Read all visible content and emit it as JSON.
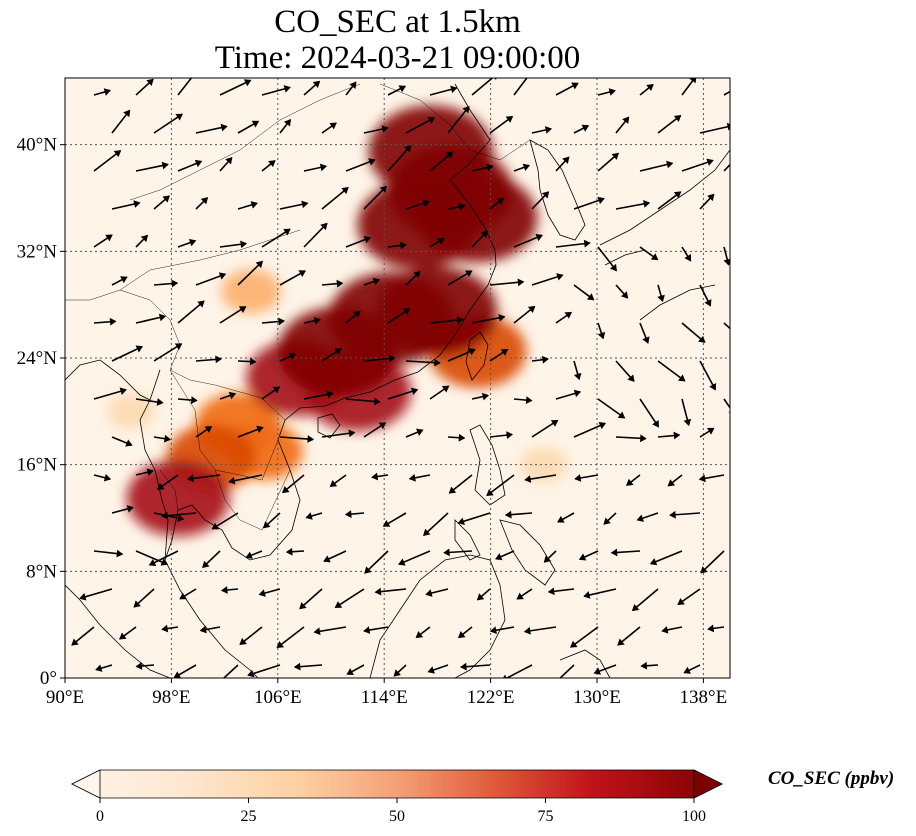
{
  "title": {
    "line1": "CO_SEC at 1.5km",
    "line2": "Time: 2024-03-21 09:00:00"
  },
  "map": {
    "lon_range": [
      90,
      140
    ],
    "lat_range": [
      0,
      45
    ],
    "lon_ticks": [
      {
        "value": 90,
        "label": "90°E"
      },
      {
        "value": 98,
        "label": "98°E"
      },
      {
        "value": 106,
        "label": "106°E"
      },
      {
        "value": 114,
        "label": "114°E"
      },
      {
        "value": 122,
        "label": "122°E"
      },
      {
        "value": 130,
        "label": "130°E"
      },
      {
        "value": 138,
        "label": "138°E"
      }
    ],
    "lat_ticks": [
      {
        "value": 0,
        "label": "0°"
      },
      {
        "value": 8,
        "label": "8°N"
      },
      {
        "value": 16,
        "label": "16°N"
      },
      {
        "value": 24,
        "label": "24°N"
      },
      {
        "value": 32,
        "label": "32°N"
      },
      {
        "value": 40,
        "label": "40°N"
      }
    ],
    "gridlines": true,
    "colormap": [
      "#fff5eb",
      "#fdd9b0",
      "#fdae6b",
      "#f16913",
      "#d94801",
      "#a50f15",
      "#7f0000"
    ]
  },
  "colorbar": {
    "label": "CO_SEC (ppbv)",
    "min": 0,
    "max": 100,
    "ticks": [
      0,
      25,
      50,
      75,
      100
    ],
    "extend": "both"
  },
  "chart_data": {
    "type": "heatmap",
    "variable": "CO_SEC",
    "units": "ppbv",
    "plumes": [
      {
        "lon": 119.0,
        "lat": 36.5,
        "value": 100
      },
      {
        "lon": 117.5,
        "lat": 39.5,
        "value": 100
      },
      {
        "lon": 116.5,
        "lat": 34.0,
        "value": 95
      },
      {
        "lon": 121.0,
        "lat": 34.5,
        "value": 95
      },
      {
        "lon": 114.5,
        "lat": 27.0,
        "value": 100
      },
      {
        "lon": 118.0,
        "lat": 27.5,
        "value": 95
      },
      {
        "lon": 110.5,
        "lat": 24.5,
        "value": 95
      },
      {
        "lon": 107.5,
        "lat": 22.5,
        "value": 75
      },
      {
        "lon": 112.0,
        "lat": 21.5,
        "value": 80
      },
      {
        "lon": 121.0,
        "lat": 24.5,
        "value": 70
      },
      {
        "lon": 101.0,
        "lat": 16.5,
        "value": 60
      },
      {
        "lon": 98.5,
        "lat": 13.5,
        "value": 75
      },
      {
        "lon": 103.0,
        "lat": 19.0,
        "value": 55
      },
      {
        "lon": 105.0,
        "lat": 17.0,
        "value": 45
      },
      {
        "lon": 104.0,
        "lat": 29.0,
        "value": 25
      },
      {
        "lon": 126.0,
        "lat": 16.0,
        "value": 12
      },
      {
        "lon": 95.0,
        "lat": 20.0,
        "value": 12
      }
    ]
  }
}
